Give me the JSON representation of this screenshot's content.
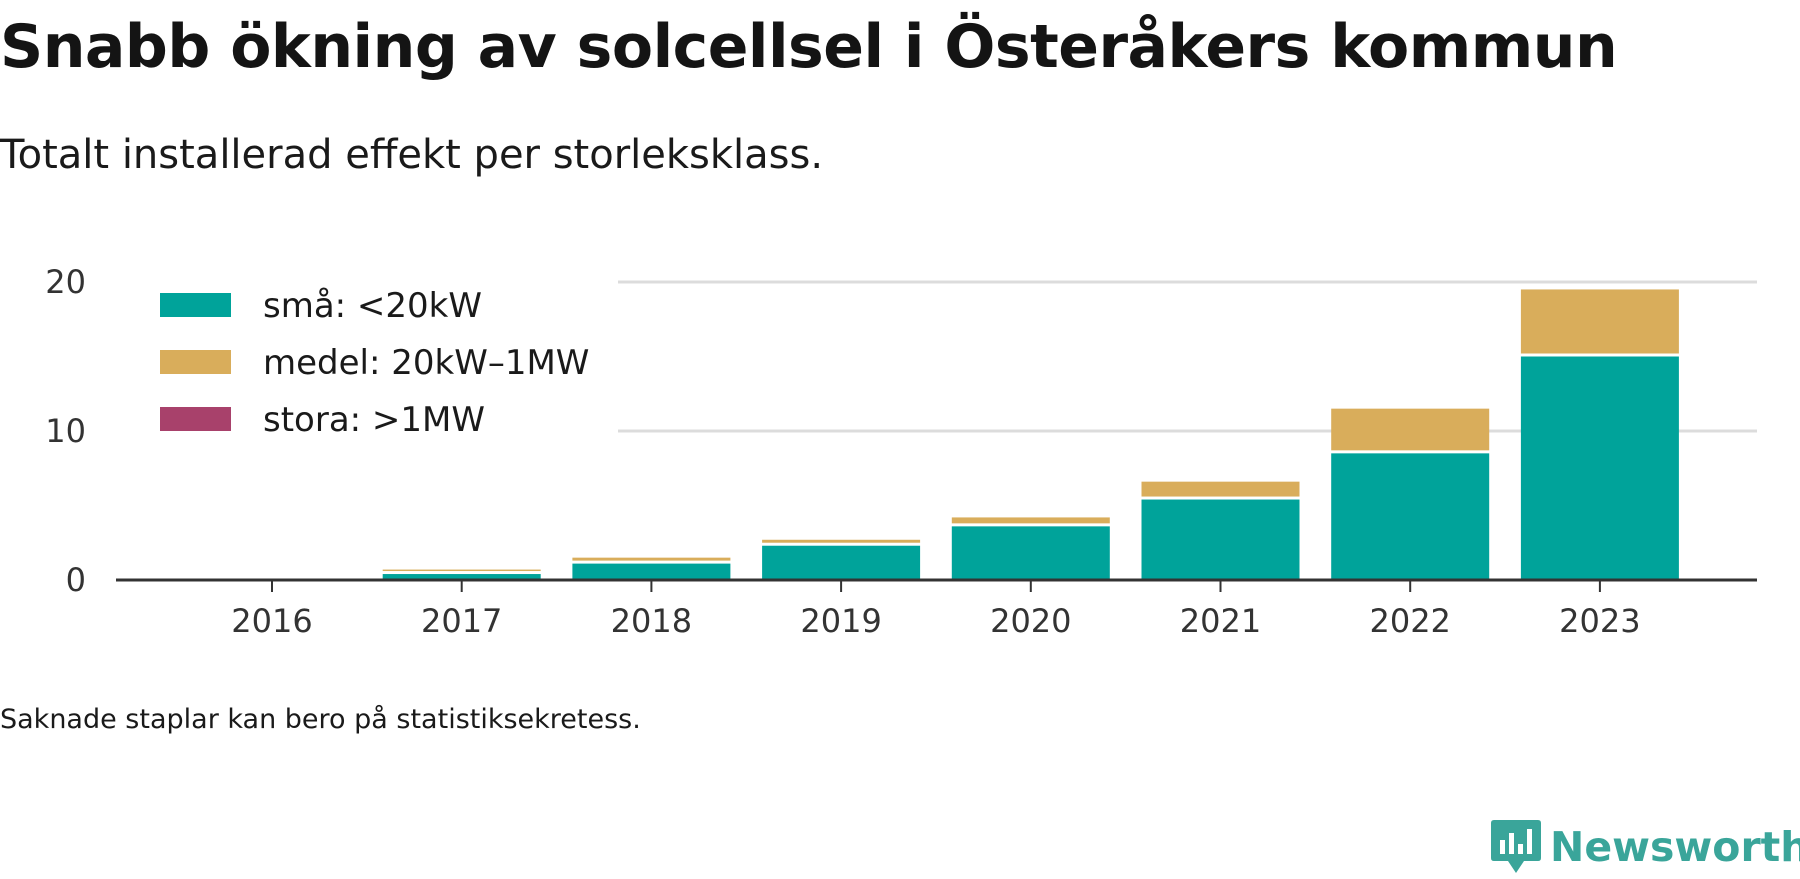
{
  "header": {
    "title": "Snabb ökning av solcellsel i Österåkers kommun",
    "subtitle": "Totalt installerad effekt per storleksklass."
  },
  "footnote": "Saknade staplar kan bero på statistiksekretess.",
  "brand": {
    "name": "Newsworthy",
    "icon": "newsworthy-logo-icon",
    "color": "#3aa59a"
  },
  "chart_data": {
    "type": "bar",
    "stacked": true,
    "categories": [
      "2016",
      "2017",
      "2018",
      "2019",
      "2020",
      "2021",
      "2022",
      "2023"
    ],
    "series": [
      {
        "name": "små: <20kW",
        "color": "#00a39a",
        "values": [
          0.0,
          0.4,
          1.1,
          2.3,
          3.6,
          5.4,
          8.5,
          15.0
        ]
      },
      {
        "name": "medel: 20kW–1MW",
        "color": "#d9ad5b",
        "values": [
          0.0,
          0.3,
          0.4,
          0.4,
          0.6,
          1.2,
          3.0,
          4.5
        ]
      },
      {
        "name": "stora: >1MW",
        "color": "#a8416b",
        "values": [
          0,
          0,
          0,
          0,
          0,
          0,
          0,
          0
        ]
      }
    ],
    "y_ticks": [
      0,
      10,
      20
    ],
    "ylim": [
      0,
      20
    ],
    "xlabel": "",
    "ylabel": "",
    "grid": true,
    "legend_position": "top-left"
  }
}
